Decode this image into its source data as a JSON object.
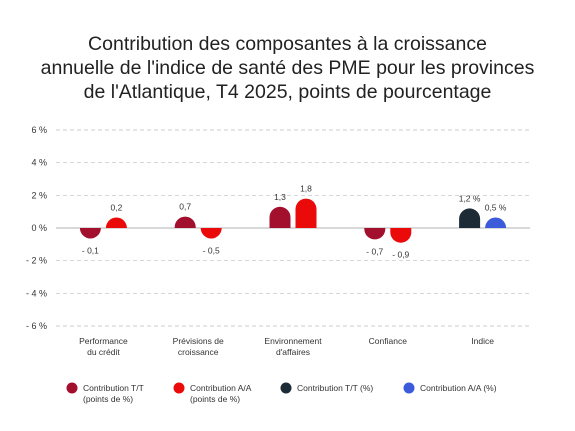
{
  "chart_data": {
    "type": "bar",
    "title_lines": [
      "Contribution des composantes à la croissance",
      "annuelle de l'indice de santé des PME pour les provinces",
      "de l'Atlantique, T4 2025, points de pourcentage"
    ],
    "xlabel": "",
    "ylabel": "",
    "categories": [
      [
        "Performance",
        "du crédit"
      ],
      [
        "Prévisions de",
        "croissance"
      ],
      [
        "Environnement",
        "d'affaires"
      ],
      [
        "Confiance"
      ],
      [
        "Indice"
      ]
    ],
    "ylim": [
      -6,
      6
    ],
    "yticks": [
      6,
      4,
      2,
      0,
      -2,
      -4,
      -6
    ],
    "ytick_labels": [
      "6 %",
      "4 %",
      "2 %",
      "0 %",
      "- 2 %",
      "- 4 %",
      "- 6 %"
    ],
    "grid": true,
    "legend_position": "bottom",
    "series": [
      {
        "name": "Contribution T/T (points de %)",
        "legend_lines": [
          "Contribution T/T",
          "(points de %)"
        ],
        "color": "#a3102e",
        "values": [
          -0.1,
          0.7,
          1.3,
          -0.7,
          null
        ],
        "labels": [
          "- 0,1",
          "0,7",
          "1,3",
          "- 0,7",
          ""
        ]
      },
      {
        "name": "Contribution A/A (points de %)",
        "legend_lines": [
          "Contribution A/A",
          "(points de %)"
        ],
        "color": "#ea0a0a",
        "values": [
          0.2,
          -0.5,
          1.8,
          -0.9,
          null
        ],
        "labels": [
          "0,2",
          "- 0,5",
          "1,8",
          "- 0,9",
          ""
        ]
      },
      {
        "name": "Contribution T/T (%)",
        "legend_lines": [
          "Contribution T/T (%)"
        ],
        "color": "#1c2b36",
        "values": [
          null,
          null,
          null,
          null,
          1.2
        ],
        "labels": [
          "",
          "",
          "",
          "",
          "1,2 %"
        ]
      },
      {
        "name": "Contribution A/A (%)",
        "legend_lines": [
          "Contribution A/A (%)"
        ],
        "color": "#3b5bdb",
        "values": [
          null,
          null,
          null,
          null,
          0.5
        ],
        "labels": [
          "",
          "",
          "",
          "",
          "0,5 %"
        ]
      }
    ],
    "colors": {
      "grid": "#bfbfbf",
      "axis": "#999999"
    }
  }
}
